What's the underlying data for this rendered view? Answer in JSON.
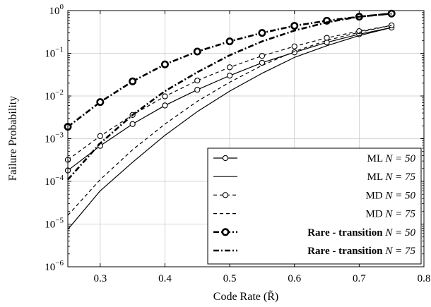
{
  "chart_data": {
    "type": "line",
    "xlabel": "Code Rate (R̃)",
    "ylabel": "Failure Probability",
    "xlim": [
      0.25,
      0.8
    ],
    "ylim": [
      1e-06,
      1
    ],
    "yscale": "log",
    "grid": true,
    "legend_position": "bottom-right",
    "x_ticks": [
      0.3,
      0.4,
      0.5,
      0.6,
      0.7,
      0.8
    ],
    "x_tick_labels": [
      "0.3",
      "0.4",
      "0.5",
      "0.6",
      "0.7",
      "0.8"
    ],
    "y_ticks": [
      1e-06,
      1e-05,
      0.0001,
      0.001,
      0.01,
      0.1,
      1
    ],
    "y_tick_labels": [
      {
        "base": "10",
        "exp": "−6"
      },
      {
        "base": "10",
        "exp": "−5"
      },
      {
        "base": "10",
        "exp": "−4"
      },
      {
        "base": "10",
        "exp": "−3"
      },
      {
        "base": "10",
        "exp": "−2"
      },
      {
        "base": "10",
        "exp": "−1"
      },
      {
        "base": "10",
        "exp": "0"
      }
    ],
    "series": [
      {
        "name": "ML N = 50",
        "legend_label": "ML",
        "legend_eq": "N = 50",
        "style": "solid",
        "marker": "circle",
        "width": 1.2,
        "x": [
          0.25,
          0.3,
          0.35,
          0.4,
          0.45,
          0.5,
          0.55,
          0.6,
          0.65,
          0.7,
          0.75
        ],
        "y": [
          0.00018,
          0.00068,
          0.0022,
          0.006,
          0.014,
          0.03,
          0.06,
          0.105,
          0.18,
          0.28,
          0.4
        ]
      },
      {
        "name": "ML N = 75",
        "legend_label": "ML",
        "legend_eq": "N = 75",
        "style": "solid",
        "marker": "none",
        "width": 1.2,
        "x": [
          0.25,
          0.3,
          0.35,
          0.4,
          0.45,
          0.5,
          0.55,
          0.6,
          0.65,
          0.7,
          0.75
        ],
        "y": [
          7.5e-06,
          6e-05,
          0.00028,
          0.0012,
          0.0043,
          0.013,
          0.034,
          0.08,
          0.15,
          0.26,
          0.4
        ]
      },
      {
        "name": "MD N = 50",
        "legend_label": "MD",
        "legend_eq": "N = 50",
        "style": "dashed",
        "marker": "circle",
        "width": 1.2,
        "x": [
          0.25,
          0.3,
          0.35,
          0.4,
          0.45,
          0.5,
          0.55,
          0.6,
          0.65,
          0.7,
          0.75
        ],
        "y": [
          0.00032,
          0.00115,
          0.0036,
          0.0098,
          0.023,
          0.047,
          0.087,
          0.145,
          0.23,
          0.33,
          0.45
        ]
      },
      {
        "name": "MD N = 75",
        "legend_label": "MD",
        "legend_eq": "N = 75",
        "style": "dashed",
        "marker": "none",
        "width": 1.2,
        "x": [
          0.25,
          0.3,
          0.35,
          0.4,
          0.45,
          0.5,
          0.55,
          0.6,
          0.65,
          0.7,
          0.75
        ],
        "y": [
          1.6e-05,
          0.00011,
          0.00055,
          0.0022,
          0.0075,
          0.021,
          0.052,
          0.11,
          0.2,
          0.31,
          0.45
        ]
      },
      {
        "name": "Rare - transition N = 50",
        "legend_label": "Rare - transition",
        "legend_eq": "N = 50",
        "style": "dashdot",
        "marker": "circle-bold",
        "width": 2.6,
        "x": [
          0.25,
          0.3,
          0.35,
          0.4,
          0.45,
          0.5,
          0.55,
          0.6,
          0.65,
          0.7,
          0.75
        ],
        "y": [
          0.0019,
          0.0072,
          0.022,
          0.055,
          0.11,
          0.19,
          0.3,
          0.44,
          0.58,
          0.72,
          0.85
        ]
      },
      {
        "name": "Rare - transition N = 75",
        "legend_label": "Rare - transition",
        "legend_eq": "N = 75",
        "style": "dashdot",
        "marker": "none",
        "width": 2.6,
        "x": [
          0.25,
          0.3,
          0.35,
          0.4,
          0.45,
          0.5,
          0.55,
          0.6,
          0.65,
          0.7,
          0.75
        ],
        "y": [
          0.00011,
          0.00078,
          0.0036,
          0.013,
          0.036,
          0.09,
          0.19,
          0.34,
          0.53,
          0.72,
          0.85
        ]
      }
    ]
  }
}
